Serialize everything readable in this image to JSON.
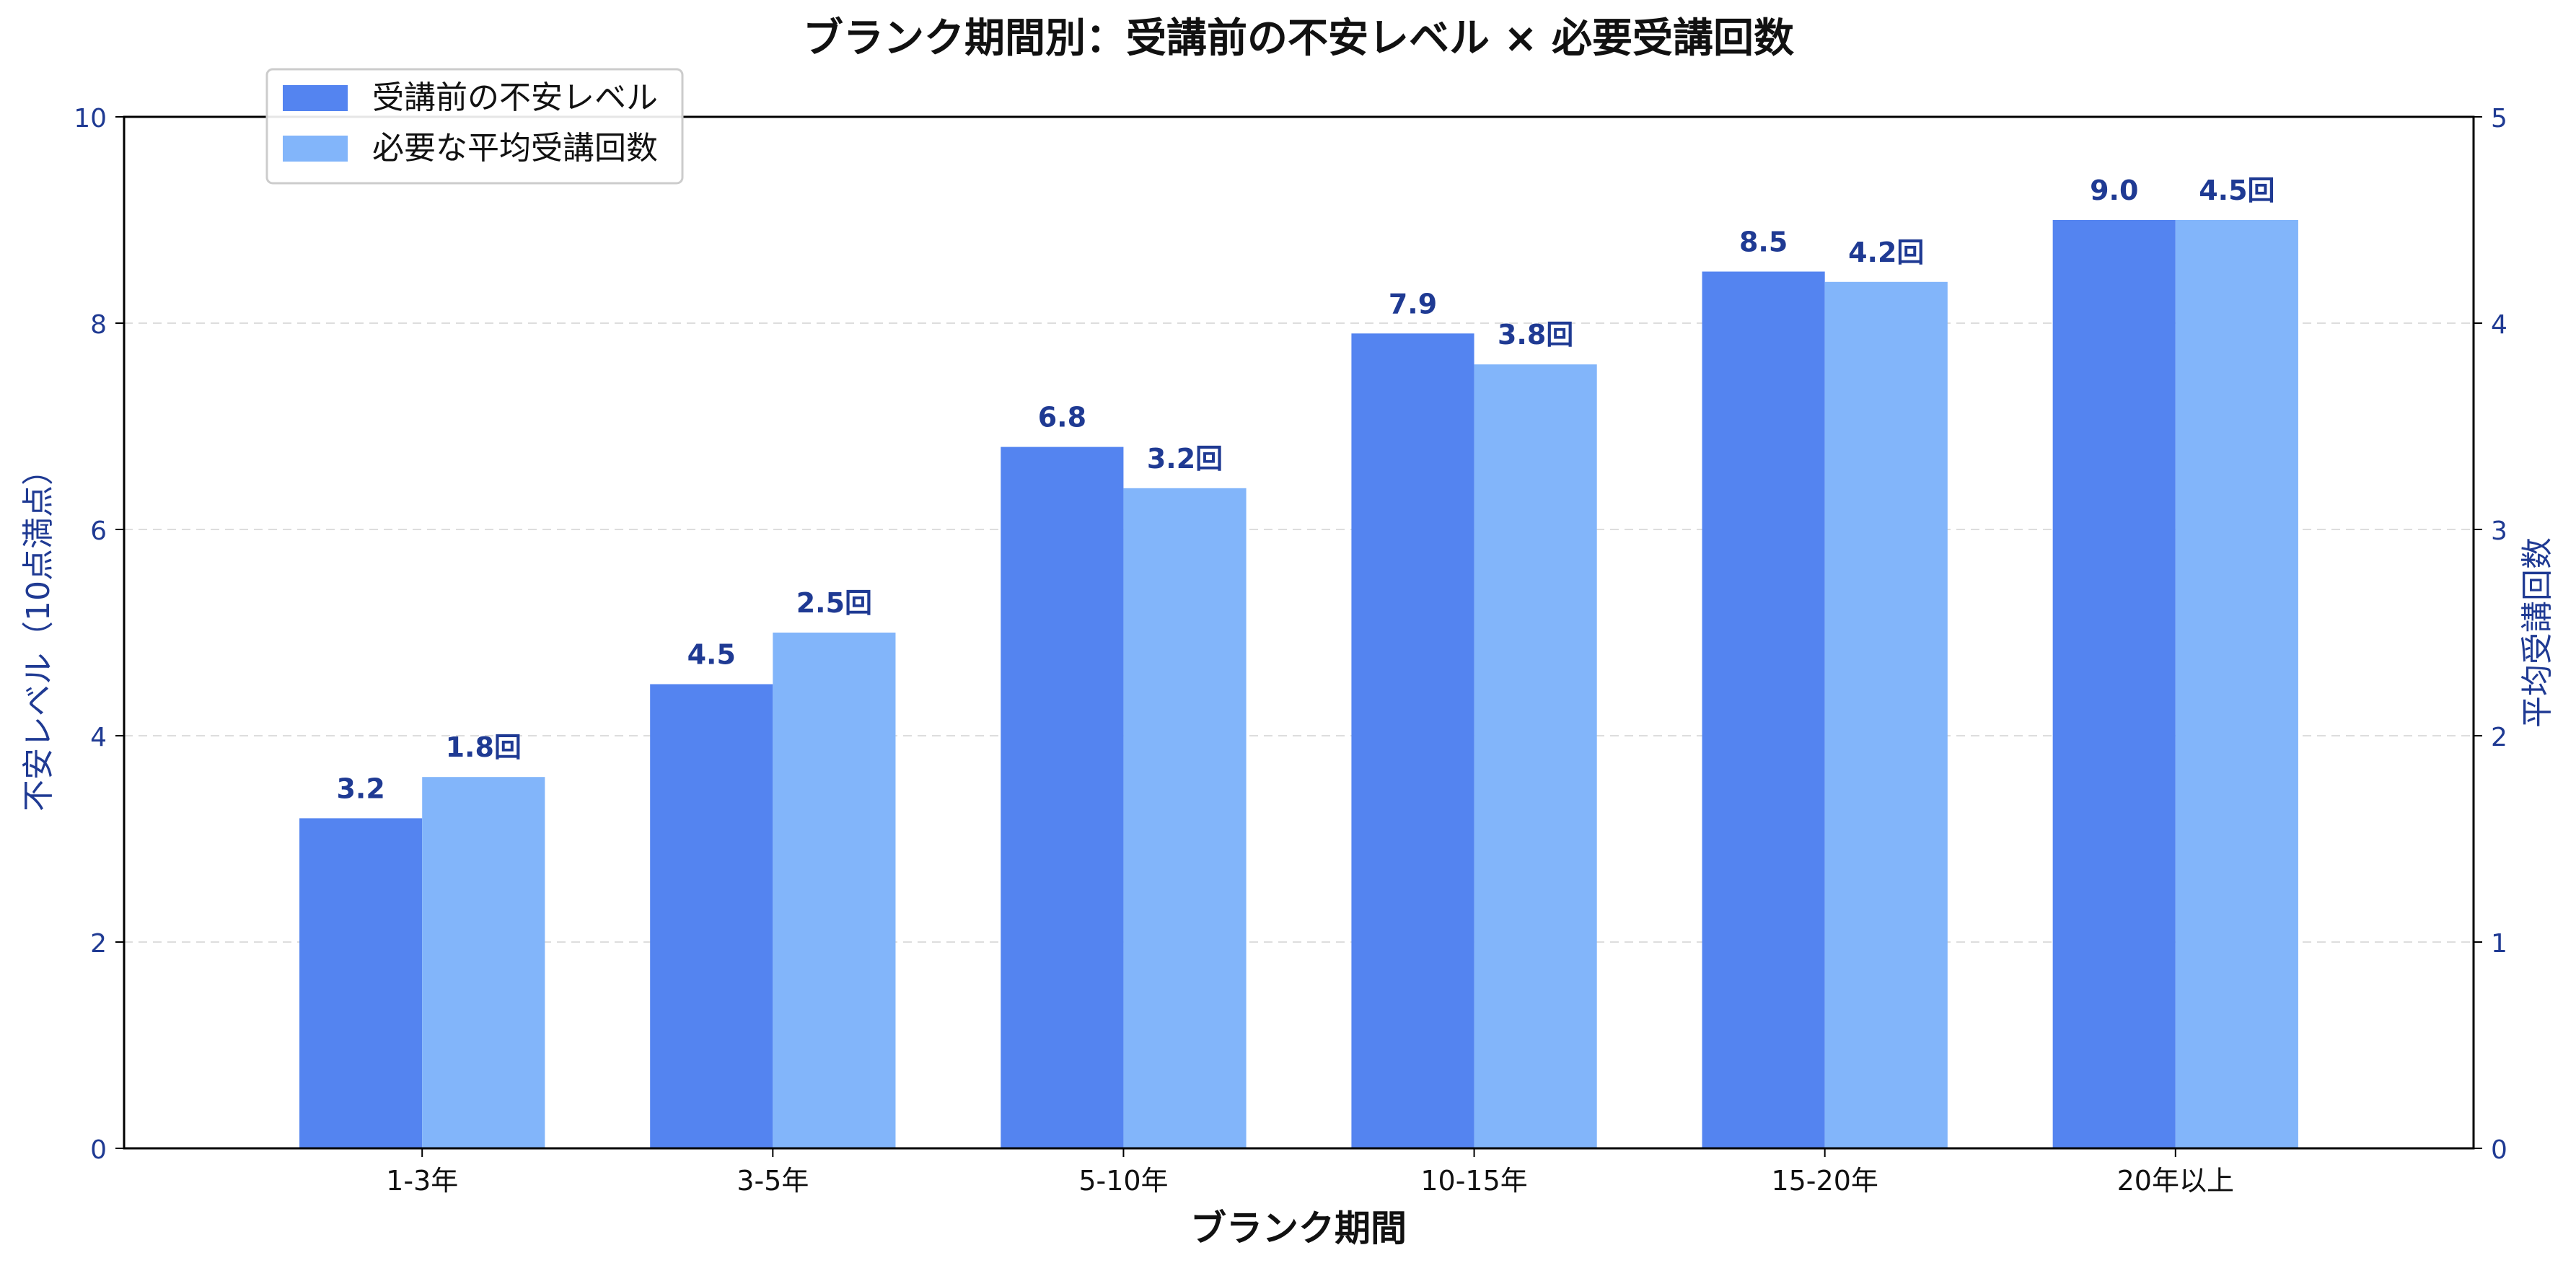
{
  "chart_data": {
    "type": "bar",
    "title": "ブランク期間別：受講前の不安レベル × 必要受講回数",
    "xlabel": "ブランク期間",
    "ylabel_left": "不安レベル（10点満点）",
    "ylabel_right": "平均受講回数",
    "categories": [
      "1-3年",
      "3-5年",
      "5-10年",
      "10-15年",
      "15-20年",
      "20年以上"
    ],
    "series": [
      {
        "name": "受講前の不安レベル",
        "axis": "left",
        "color": "#5484f0",
        "values": [
          3.2,
          4.5,
          6.8,
          7.9,
          8.5,
          9.0
        ],
        "labels": [
          "3.2",
          "4.5",
          "6.8",
          "7.9",
          "8.5",
          "9.0"
        ]
      },
      {
        "name": "必要な平均受講回数",
        "axis": "right",
        "color": "#82b5fa",
        "values": [
          1.8,
          2.5,
          3.2,
          3.8,
          4.2,
          4.5
        ],
        "labels": [
          "1.8回",
          "2.5回",
          "3.2回",
          "3.8回",
          "4.2回",
          "4.5回"
        ]
      }
    ],
    "ylim_left": [
      0,
      10
    ],
    "ylim_right": [
      0,
      5
    ],
    "yticks_left": [
      "0",
      "2",
      "4",
      "6",
      "8",
      "10"
    ],
    "yticks_right": [
      "0",
      "1",
      "2",
      "3",
      "4",
      "5"
    ],
    "grid": "horizontal dashed",
    "legend": "top-left",
    "axis_color": "#1f3a93",
    "label_color": "#1f3a93"
  }
}
